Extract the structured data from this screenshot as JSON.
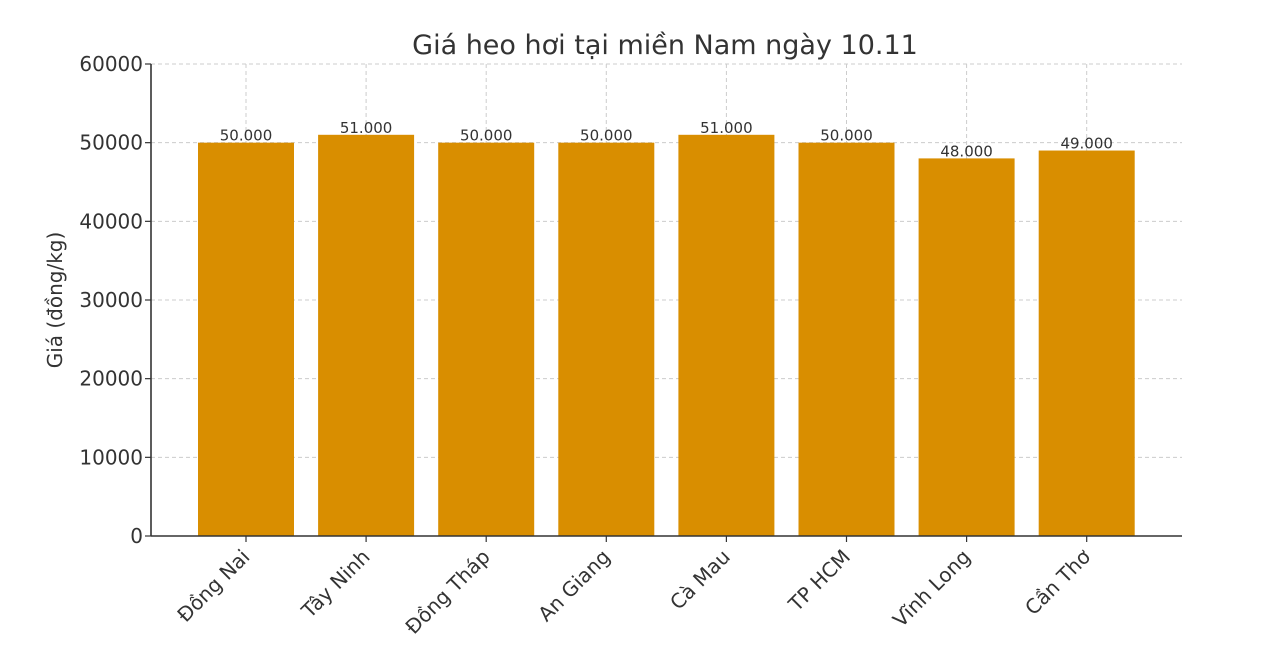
{
  "chart_data": {
    "type": "bar",
    "title": "Giá heo hơi tại miền Nam ngày 10.11",
    "xlabel": "",
    "ylabel": "Giá (đồng/kg)",
    "categories": [
      "Đồng Nai",
      "Tây Ninh",
      "Đồng Tháp",
      "An Giang",
      "Cà Mau",
      "TP HCM",
      "Vĩnh Long",
      "Cần Thơ"
    ],
    "values": [
      50000,
      51000,
      50000,
      50000,
      51000,
      50000,
      48000,
      49000
    ],
    "data_labels": [
      "50.000",
      "51.000",
      "50.000",
      "50.000",
      "51.000",
      "50.000",
      "48.000",
      "49.000"
    ],
    "yticks": [
      0,
      10000,
      20000,
      30000,
      40000,
      50000,
      60000
    ],
    "ytick_labels": [
      "0",
      "10000",
      "20000",
      "30000",
      "40000",
      "50000",
      "60000"
    ],
    "ylim": [
      0,
      60000
    ],
    "grid": true,
    "bar_color": "#d98e00"
  }
}
